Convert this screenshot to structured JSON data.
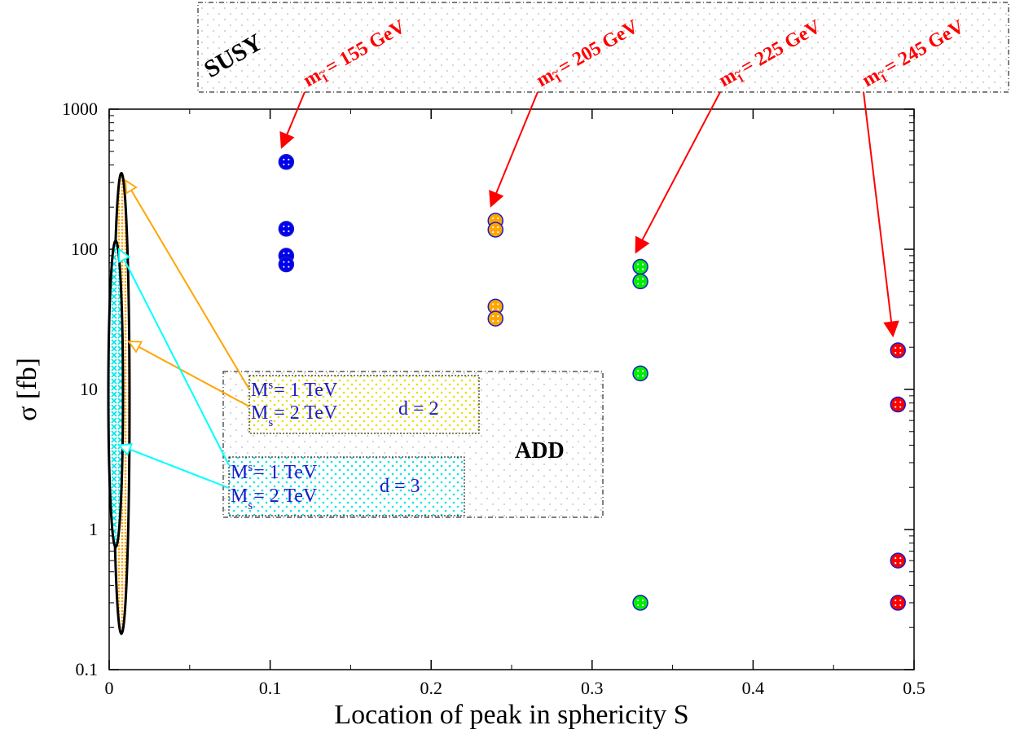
{
  "chart_data": {
    "type": "scatter",
    "xlabel": "Location of peak in sphericity S",
    "ylabel": "σ [fb]",
    "xlim": [
      0,
      0.5
    ],
    "ylim": [
      0.1,
      1000
    ],
    "y_scale": "log",
    "x_ticks": [
      "0",
      "0.1",
      "0.2",
      "0.3",
      "0.4",
      "0.5"
    ],
    "y_ticks": [
      "0.1",
      "1",
      "10",
      "100",
      "1000"
    ],
    "susy_label": "SUSY",
    "add_label": "ADD",
    "series": [
      {
        "mass_label": "= 155 GeV",
        "color": "#0000ee",
        "x": 0.11,
        "y": [
          420,
          140,
          90,
          78
        ]
      },
      {
        "mass_label": "= 205 GeV",
        "color": "#ffa500",
        "x": 0.24,
        "y": [
          160,
          138,
          39,
          32
        ]
      },
      {
        "mass_label": "= 225 GeV",
        "color": "#00ee00",
        "x": 0.33,
        "y": [
          75,
          59,
          13,
          0.3
        ]
      },
      {
        "mass_label": "= 245 GeV",
        "color": "#ff0000",
        "x": 0.49,
        "y": [
          19,
          7.8,
          0.6,
          0.3
        ]
      }
    ],
    "add_models": [
      {
        "d_label": "d = 2",
        "color": "#ffa500",
        "ms1_value": "= 1 TeV",
        "ms2_value": "= 2 TeV",
        "y_range": [
          0.18,
          350
        ],
        "arrow_targets": [
          310,
          22
        ]
      },
      {
        "d_label": "d = 3",
        "color": "#00ffff",
        "ms1_value": "= 1 TeV",
        "ms2_value": "= 2 TeV",
        "y_range": [
          0.75,
          115
        ],
        "arrow_targets": [
          100,
          4
        ]
      }
    ]
  }
}
